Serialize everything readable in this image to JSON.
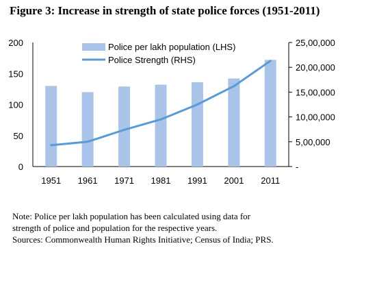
{
  "title": "Figure 3:  Increase in strength of state police forces (1951-2011)",
  "colors": {
    "bar": "#a9c4e8",
    "line": "#5b9bd5",
    "axis": "#000000"
  },
  "chart_data": {
    "type": "bar",
    "categories": [
      "1951",
      "1961",
      "1971",
      "1981",
      "1991",
      "2001",
      "2011"
    ],
    "series": [
      {
        "name": "Police per lakh population (LHS)",
        "type": "bar",
        "axis": "left",
        "values": [
          130,
          120,
          129,
          132,
          136,
          142,
          172
        ]
      },
      {
        "name": "Police Strength (RHS)",
        "type": "line",
        "axis": "right",
        "values": [
          430000,
          500000,
          740000,
          950000,
          1250000,
          1620000,
          2130000
        ]
      }
    ],
    "ylim_left": [
      0,
      200
    ],
    "yticks_left": [
      0,
      50,
      100,
      150,
      200
    ],
    "ylim_right": [
      0,
      2500000
    ],
    "yticks_right": [
      0,
      500000,
      1000000,
      1500000,
      2000000,
      2500000
    ],
    "yticklabels_right": [
      "-",
      "5,00,000",
      "10,00,000",
      "15,00,000",
      "20,00,000",
      "25,00,000"
    ],
    "grid": false,
    "legend_position": "top-left"
  },
  "note": {
    "line1": "Note: Police per lakh population has been calculated using data for",
    "line2": "strength of police and population for the respective years.",
    "line3": "Sources: Commonwealth Human Rights Initiative; Census of India; PRS."
  }
}
